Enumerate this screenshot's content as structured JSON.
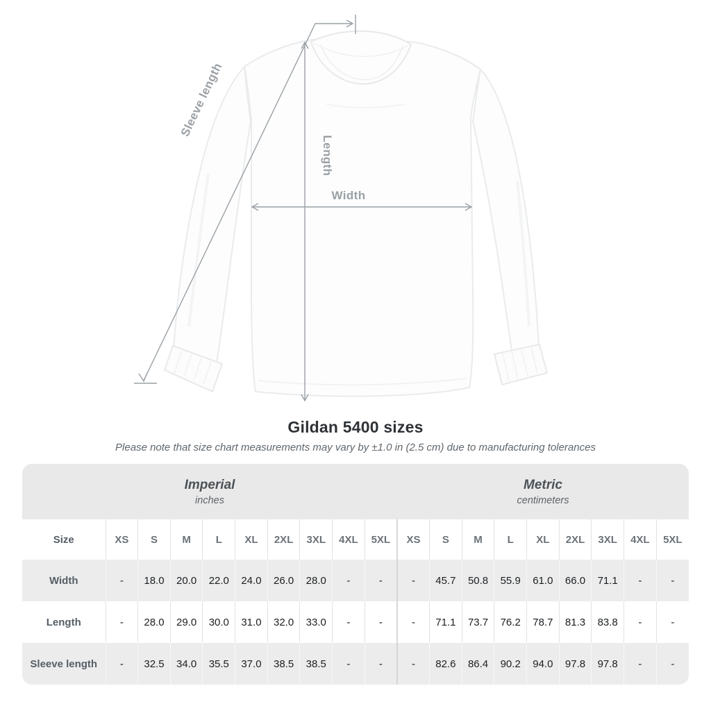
{
  "title": "Gildan 5400 sizes",
  "subtitle": "Please note that size chart measurements may vary by ±1.0 in (2.5 cm) due to manufacturing tolerances",
  "diagram": {
    "labels": {
      "sleeve_length": "Sleeve length",
      "length": "Length",
      "width": "Width"
    },
    "arrow_color": "#9aa0a5"
  },
  "table": {
    "groups": [
      {
        "label": "Imperial",
        "sublabel": "inches"
      },
      {
        "label": "Metric",
        "sublabel": "centimeters"
      }
    ],
    "size_header": "Size",
    "sizes": [
      "XS",
      "S",
      "M",
      "L",
      "XL",
      "2XL",
      "3XL",
      "4XL",
      "5XL"
    ],
    "rows": [
      {
        "label": "Width",
        "imperial": [
          "-",
          "18.0",
          "20.0",
          "22.0",
          "24.0",
          "26.0",
          "28.0",
          "-",
          "-"
        ],
        "metric": [
          "-",
          "45.7",
          "50.8",
          "55.9",
          "61.0",
          "66.0",
          "71.1",
          "-",
          "-"
        ]
      },
      {
        "label": "Length",
        "imperial": [
          "-",
          "28.0",
          "29.0",
          "30.0",
          "31.0",
          "32.0",
          "33.0",
          "-",
          "-"
        ],
        "metric": [
          "-",
          "71.1",
          "73.7",
          "76.2",
          "78.7",
          "81.3",
          "83.8",
          "-",
          "-"
        ]
      },
      {
        "label": "Sleeve length",
        "imperial": [
          "-",
          "32.5",
          "34.0",
          "35.5",
          "37.0",
          "38.5",
          "38.5",
          "-",
          "-"
        ],
        "metric": [
          "-",
          "82.6",
          "86.4",
          "90.2",
          "94.0",
          "97.8",
          "97.8",
          "-",
          "-"
        ]
      }
    ]
  },
  "colors": {
    "band_bg": "#e9e9e9",
    "zebra_bg": "#ececec",
    "value_text": "#1b1e21",
    "label_text": "#565e66",
    "diagram_gray": "#9aa0a5"
  }
}
